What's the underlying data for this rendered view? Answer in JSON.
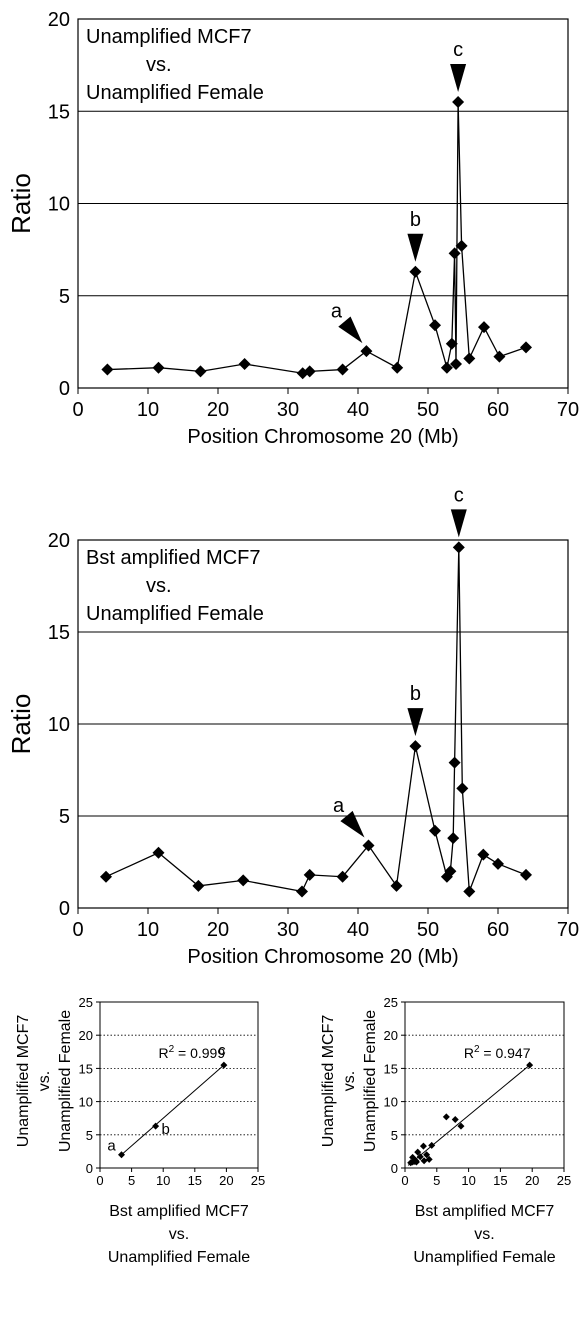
{
  "chart_data": [
    {
      "type": "line",
      "title_lines": [
        "Unamplified MCF7",
        "vs.",
        "Unamplified Female"
      ],
      "xlabel": "Position Chromosome 20 (Mb)",
      "ylabel": "Ratio",
      "xlim": [
        0,
        70
      ],
      "ylim": [
        0,
        20
      ],
      "xticks": [
        "0",
        "10",
        "20",
        "30",
        "40",
        "50",
        "60",
        "70"
      ],
      "yticks": [
        "0",
        "5",
        "10",
        "15",
        "20"
      ],
      "grid": "horizontal",
      "x": [
        4.2,
        11.5,
        17.5,
        23.8,
        32.1,
        33.1,
        37.8,
        41.2,
        45.6,
        48.2,
        51.0,
        52.7,
        53.4,
        53.8,
        54.0,
        54.3,
        54.8,
        55.9,
        58.0,
        60.2,
        64.0
      ],
      "y": [
        1.0,
        1.1,
        0.9,
        1.3,
        0.8,
        0.9,
        1.0,
        2.0,
        1.1,
        6.3,
        3.4,
        1.1,
        2.4,
        7.3,
        1.3,
        15.5,
        7.7,
        1.6,
        3.3,
        1.7,
        2.2
      ],
      "annotations": [
        {
          "label": "a",
          "x": 41.2,
          "y": 2.0
        },
        {
          "label": "b",
          "x": 48.2,
          "y": 6.3
        },
        {
          "label": "c",
          "x": 54.3,
          "y": 15.5
        }
      ]
    },
    {
      "type": "line",
      "title_lines": [
        "Bst amplified MCF7",
        "vs.",
        "Unamplified Female"
      ],
      "xlabel": "Position Chromosome 20 (Mb)",
      "ylabel": "Ratio",
      "xlim": [
        0,
        70
      ],
      "ylim": [
        0,
        20
      ],
      "xticks": [
        "0",
        "10",
        "20",
        "30",
        "40",
        "50",
        "60",
        "70"
      ],
      "yticks": [
        "0",
        "5",
        "10",
        "15",
        "20"
      ],
      "grid": "horizontal",
      "x": [
        4.0,
        11.5,
        17.2,
        23.6,
        32.0,
        33.1,
        37.8,
        41.5,
        45.5,
        48.2,
        51.0,
        52.7,
        53.2,
        53.6,
        53.8,
        54.4,
        54.9,
        55.9,
        57.9,
        60.0,
        64.0
      ],
      "y": [
        1.7,
        3.0,
        1.2,
        1.5,
        0.9,
        1.8,
        1.7,
        3.4,
        1.2,
        8.8,
        4.2,
        1.7,
        2.0,
        3.8,
        7.9,
        19.6,
        6.5,
        0.9,
        2.9,
        2.4,
        1.8
      ],
      "annotations": [
        {
          "label": "a",
          "x": 41.5,
          "y": 3.4
        },
        {
          "label": "b",
          "x": 48.2,
          "y": 8.8
        },
        {
          "label": "c",
          "x": 54.4,
          "y": 19.6
        }
      ]
    },
    {
      "type": "scatter",
      "xlabel_lines": [
        "Bst amplified MCF7",
        "vs.",
        "Unamplified Female"
      ],
      "ylabel_lines": [
        "Unamplified MCF7",
        "vs.",
        "Unamplified Female"
      ],
      "xlim": [
        0,
        25
      ],
      "ylim": [
        0,
        25
      ],
      "xticks": [
        "0",
        "5",
        "10",
        "15",
        "20",
        "25"
      ],
      "yticks": [
        "0",
        "5",
        "10",
        "15",
        "20",
        "25"
      ],
      "grid": "horizontal-dotted",
      "r2_label": "R",
      "r2_sup": "2",
      "r2_value": "= 0.999",
      "points": [
        {
          "x": 3.4,
          "y": 2.0
        },
        {
          "x": 8.8,
          "y": 6.3
        },
        {
          "x": 19.6,
          "y": 15.5
        }
      ],
      "point_labels": [
        "a",
        "b",
        "c"
      ],
      "trendline": {
        "x": [
          3.4,
          19.6
        ],
        "y": [
          2.0,
          15.5
        ]
      }
    },
    {
      "type": "scatter",
      "xlabel_lines": [
        "Bst amplified MCF7",
        "vs.",
        "Unamplified Female"
      ],
      "ylabel_lines": [
        "Unamplified MCF7",
        "vs.",
        "Unamplified Female"
      ],
      "xlim": [
        0,
        25
      ],
      "ylim": [
        0,
        25
      ],
      "xticks": [
        "0",
        "5",
        "10",
        "15",
        "20",
        "25"
      ],
      "yticks": [
        "0",
        "5",
        "10",
        "15",
        "20",
        "25"
      ],
      "grid": "horizontal-dotted",
      "r2_label": "R",
      "r2_sup": "2",
      "r2_value": "= 0.947",
      "points": [
        {
          "x": 0.9,
          "y": 0.8
        },
        {
          "x": 1.2,
          "y": 0.9
        },
        {
          "x": 1.5,
          "y": 1.0
        },
        {
          "x": 1.7,
          "y": 1.0
        },
        {
          "x": 1.8,
          "y": 0.9
        },
        {
          "x": 2.0,
          "y": 2.4
        },
        {
          "x": 2.4,
          "y": 1.7
        },
        {
          "x": 2.9,
          "y": 3.3
        },
        {
          "x": 3.0,
          "y": 1.1
        },
        {
          "x": 3.4,
          "y": 2.0
        },
        {
          "x": 3.8,
          "y": 1.3
        },
        {
          "x": 4.2,
          "y": 3.4
        },
        {
          "x": 1.2,
          "y": 1.6
        },
        {
          "x": 1.7,
          "y": 1.1
        },
        {
          "x": 6.5,
          "y": 7.7
        },
        {
          "x": 7.9,
          "y": 7.3
        },
        {
          "x": 8.8,
          "y": 6.3
        },
        {
          "x": 19.6,
          "y": 15.5
        }
      ],
      "trendline": {
        "x": [
          0.5,
          19.6
        ],
        "y": [
          0.4,
          15.5
        ]
      }
    }
  ]
}
